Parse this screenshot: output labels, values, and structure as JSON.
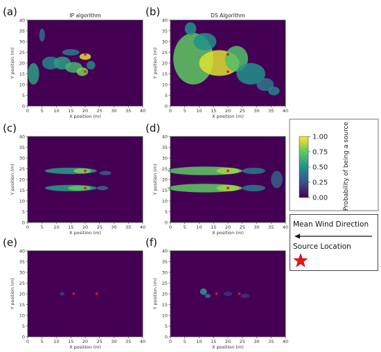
{
  "chart_data": [
    {
      "type": "heatmap",
      "panel": "(a)",
      "title": "IP algorithm",
      "xlabel": "X position (m)",
      "ylabel": "Y position (m)",
      "xlim": [
        0,
        40
      ],
      "ylim": [
        0,
        40
      ],
      "xticks": [
        "0",
        "5",
        "10",
        "15",
        "20",
        "25",
        "30",
        "35",
        "40"
      ],
      "yticks": [
        "0",
        "5",
        "10",
        "15",
        "20",
        "25",
        "30",
        "35",
        "40"
      ],
      "blobs": [
        {
          "x": 5,
          "y": 33,
          "rx": 1,
          "ry": 3,
          "v": 0.35
        },
        {
          "x": 2,
          "y": 15,
          "rx": 2,
          "ry": 5,
          "v": 0.55
        },
        {
          "x": 8,
          "y": 20,
          "rx": 3,
          "ry": 3,
          "v": 0.45
        },
        {
          "x": 12,
          "y": 20,
          "rx": 3,
          "ry": 3,
          "v": 0.55
        },
        {
          "x": 16,
          "y": 18,
          "rx": 3,
          "ry": 2.5,
          "v": 0.65
        },
        {
          "x": 20,
          "y": 23,
          "rx": 2,
          "ry": 1.5,
          "v": 0.95
        },
        {
          "x": 19,
          "y": 16,
          "rx": 2,
          "ry": 2,
          "v": 0.8
        },
        {
          "x": 15,
          "y": 25,
          "rx": 3,
          "ry": 1.5,
          "v": 0.4
        },
        {
          "x": 22,
          "y": 19,
          "rx": 1.5,
          "ry": 2,
          "v": 0.45
        }
      ],
      "sources": [
        {
          "x": 20,
          "y": 24
        },
        {
          "x": 20,
          "y": 16
        }
      ]
    },
    {
      "type": "heatmap",
      "panel": "(b)",
      "title": "DS Algorithm",
      "xlabel": "X position (m)",
      "ylabel": "Y position (m)",
      "xlim": [
        0,
        40
      ],
      "ylim": [
        0,
        40
      ],
      "xticks": [
        "0",
        "5",
        "10",
        "15",
        "20",
        "25",
        "30",
        "35",
        "40"
      ],
      "yticks": [
        "0",
        "5",
        "10",
        "15",
        "20",
        "25",
        "30",
        "35",
        "40"
      ],
      "blobs": [
        {
          "x": 8,
          "y": 22,
          "rx": 7,
          "ry": 12,
          "v": 0.75
        },
        {
          "x": 17,
          "y": 20,
          "rx": 7,
          "ry": 6,
          "v": 0.95
        },
        {
          "x": 23,
          "y": 22,
          "rx": 4,
          "ry": 6,
          "v": 0.7
        },
        {
          "x": 28,
          "y": 15,
          "rx": 5,
          "ry": 5,
          "v": 0.5
        },
        {
          "x": 33,
          "y": 10,
          "rx": 3,
          "ry": 3,
          "v": 0.4
        },
        {
          "x": 12,
          "y": 30,
          "rx": 4,
          "ry": 4,
          "v": 0.5
        },
        {
          "x": 7,
          "y": 36,
          "rx": 2,
          "ry": 3,
          "v": 0.5
        },
        {
          "x": 36,
          "y": 7,
          "rx": 2,
          "ry": 2,
          "v": 0.45
        }
      ],
      "sources": [
        {
          "x": 20,
          "y": 24
        },
        {
          "x": 20,
          "y": 16
        }
      ]
    },
    {
      "type": "heatmap",
      "panel": "(c)",
      "xlabel": "X position (m)",
      "ylabel": "Y position (m)",
      "xlim": [
        0,
        40
      ],
      "ylim": [
        0,
        40
      ],
      "xticks": [
        "0",
        "5",
        "10",
        "15",
        "20",
        "25",
        "30",
        "35",
        "40"
      ],
      "yticks": [
        "0",
        "5",
        "10",
        "15",
        "20",
        "25",
        "30",
        "35",
        "40"
      ],
      "blobs": [
        {
          "x": 15,
          "y": 24,
          "rx": 9,
          "ry": 1.5,
          "v": 0.55
        },
        {
          "x": 19,
          "y": 24,
          "rx": 3,
          "ry": 1.2,
          "v": 0.8
        },
        {
          "x": 15,
          "y": 16,
          "rx": 9,
          "ry": 1.5,
          "v": 0.55
        },
        {
          "x": 18,
          "y": 16,
          "rx": 4,
          "ry": 1.2,
          "v": 0.75
        },
        {
          "x": 26,
          "y": 16,
          "rx": 2,
          "ry": 1,
          "v": 0.35
        },
        {
          "x": 27,
          "y": 23,
          "rx": 2,
          "ry": 1,
          "v": 0.3
        }
      ],
      "sources": [
        {
          "x": 20,
          "y": 24
        },
        {
          "x": 20,
          "y": 16
        }
      ]
    },
    {
      "type": "heatmap",
      "panel": "(d)",
      "xlabel": "X position (m)",
      "ylabel": "Y position (m)",
      "xlim": [
        0,
        40
      ],
      "ylim": [
        0,
        40
      ],
      "xticks": [
        "0",
        "5",
        "10",
        "15",
        "20",
        "25",
        "30",
        "35",
        "40"
      ],
      "yticks": [
        "0",
        "5",
        "10",
        "15",
        "20",
        "25",
        "30",
        "35",
        "40"
      ],
      "blobs": [
        {
          "x": 12,
          "y": 24,
          "rx": 13,
          "ry": 2,
          "v": 0.75
        },
        {
          "x": 20,
          "y": 24,
          "rx": 4,
          "ry": 1.5,
          "v": 0.85
        },
        {
          "x": 12,
          "y": 16,
          "rx": 13,
          "ry": 2,
          "v": 0.75
        },
        {
          "x": 20,
          "y": 16,
          "rx": 4,
          "ry": 1.5,
          "v": 0.85
        },
        {
          "x": 29,
          "y": 24,
          "rx": 4,
          "ry": 1.5,
          "v": 0.4
        },
        {
          "x": 29,
          "y": 16,
          "rx": 4,
          "ry": 1.5,
          "v": 0.4
        },
        {
          "x": 37,
          "y": 20,
          "rx": 2,
          "ry": 4,
          "v": 0.3
        }
      ],
      "sources": [
        {
          "x": 20,
          "y": 24
        },
        {
          "x": 20,
          "y": 16
        }
      ]
    },
    {
      "type": "heatmap",
      "panel": "(e)",
      "xlabel": "X position (m)",
      "ylabel": "Y position (m)",
      "xlim": [
        0,
        40
      ],
      "ylim": [
        0,
        40
      ],
      "xticks": [
        "0",
        "5",
        "10",
        "15",
        "20",
        "25",
        "30",
        "35",
        "40"
      ],
      "yticks": [
        "0",
        "5",
        "10",
        "15",
        "20",
        "25",
        "30",
        "35",
        "40"
      ],
      "blobs": [
        {
          "x": 12,
          "y": 20,
          "rx": 0.8,
          "ry": 0.8,
          "v": 0.2
        }
      ],
      "sources": [
        {
          "x": 16,
          "y": 20
        },
        {
          "x": 24,
          "y": 20
        }
      ]
    },
    {
      "type": "heatmap",
      "panel": "(f)",
      "xlabel": "X position (m)",
      "ylabel": "Y position (m)",
      "xlim": [
        0,
        40
      ],
      "ylim": [
        0,
        40
      ],
      "xticks": [
        "0",
        "5",
        "10",
        "15",
        "20",
        "25",
        "30",
        "35",
        "40"
      ],
      "yticks": [
        "0",
        "5",
        "10",
        "15",
        "20",
        "25",
        "30",
        "35",
        "40"
      ],
      "blobs": [
        {
          "x": 11.5,
          "y": 21,
          "rx": 1.2,
          "ry": 1.5,
          "v": 0.55
        },
        {
          "x": 13,
          "y": 19,
          "rx": 1,
          "ry": 1,
          "v": 0.4
        },
        {
          "x": 20,
          "y": 20,
          "rx": 1.5,
          "ry": 1,
          "v": 0.15
        },
        {
          "x": 26,
          "y": 19,
          "rx": 1.5,
          "ry": 1,
          "v": 0.15
        }
      ],
      "sources": [
        {
          "x": 16,
          "y": 20
        },
        {
          "x": 24,
          "y": 20
        }
      ]
    }
  ],
  "colorbar": {
    "label": "Probability of being a source",
    "ticks": [
      "0.00",
      "0.25",
      "0.50",
      "0.75",
      "1.00"
    ],
    "range": [
      0,
      1
    ],
    "colormap": [
      "#440154",
      "#3b528b",
      "#21918c",
      "#5ec962",
      "#fde725"
    ]
  },
  "legend": {
    "wind_label": "Mean Wind Direction",
    "source_label": "Source Location",
    "wind_arrow_direction": "left",
    "source_color": "#e8141c"
  }
}
